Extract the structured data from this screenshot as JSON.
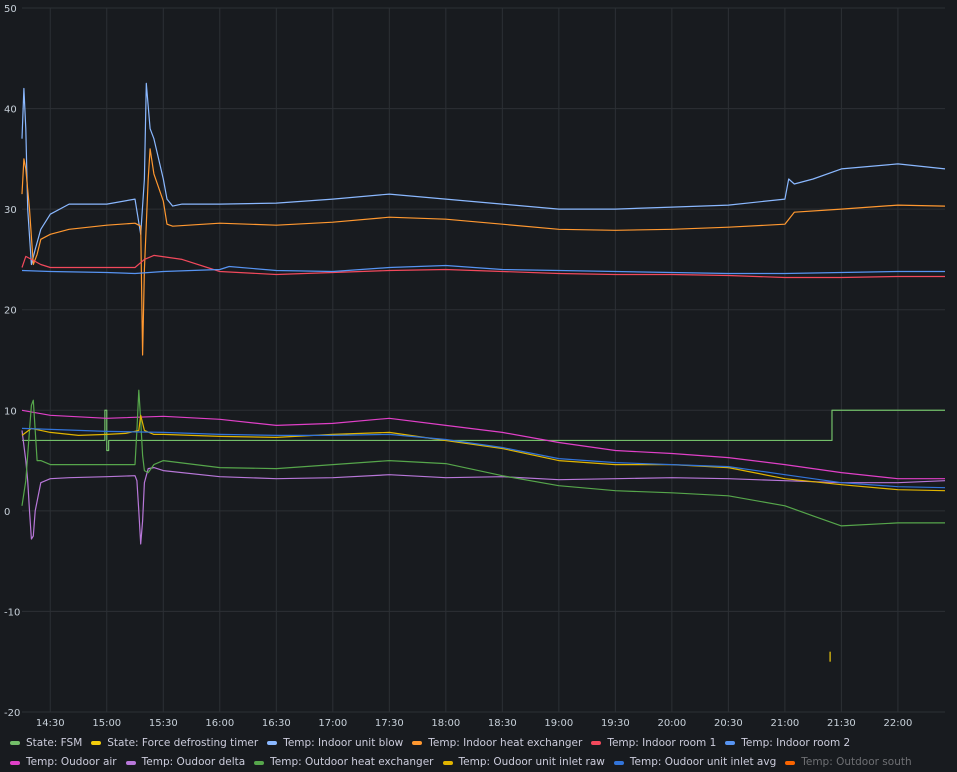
{
  "chart_data": {
    "type": "line",
    "title": "",
    "xlabel": "",
    "ylabel": "",
    "ylim": [
      -20,
      50
    ],
    "y_ticks": [
      -20,
      -10,
      0,
      10,
      20,
      30,
      40,
      50
    ],
    "x_range": [
      "14:15",
      "22:25"
    ],
    "x_ticks": [
      "14:30",
      "15:00",
      "15:30",
      "16:00",
      "16:30",
      "17:00",
      "17:30",
      "18:00",
      "18:30",
      "19:00",
      "19:30",
      "20:00",
      "20:30",
      "21:00",
      "21:30",
      "22:00"
    ],
    "grid": true,
    "legend_position": "bottom",
    "series": [
      {
        "name": "State: FSM",
        "color": "#73bf69",
        "style": "step",
        "x": [
          "14:15",
          "14:58",
          "14:59",
          "15:00",
          "15:01",
          "21:24",
          "21:25",
          "22:25"
        ],
        "y": [
          7,
          7,
          10,
          6,
          7,
          7,
          10,
          10
        ]
      },
      {
        "name": "State: Force defrosting timer",
        "color": "#f2cc0c",
        "x": [
          "21:24"
        ],
        "y": [
          -14.5
        ]
      },
      {
        "name": "Temp: Indoor unit blow",
        "color": "#8ab8ff",
        "x": [
          "14:15",
          "14:16",
          "14:17",
          "14:18",
          "14:20",
          "14:22",
          "14:25",
          "14:30",
          "14:40",
          "15:00",
          "15:15",
          "15:18",
          "15:20",
          "15:21",
          "15:23",
          "15:25",
          "15:30",
          "15:32",
          "15:35",
          "15:40",
          "16:00",
          "16:30",
          "17:00",
          "17:30",
          "18:00",
          "18:30",
          "19:00",
          "19:30",
          "20:00",
          "20:30",
          "21:00",
          "21:02",
          "21:05",
          "21:15",
          "21:30",
          "22:00",
          "22:25"
        ],
        "y": [
          37,
          42,
          38,
          30,
          24.5,
          26,
          28,
          29.5,
          30.5,
          30.5,
          31,
          27.5,
          33,
          42.5,
          38,
          37,
          33,
          31,
          30.3,
          30.5,
          30.5,
          30.6,
          31,
          31.5,
          31,
          30.5,
          30,
          30,
          30.2,
          30.4,
          31,
          33,
          32.5,
          33,
          34,
          34.5,
          34
        ]
      },
      {
        "name": "Temp: Indoor heat exchanger",
        "color": "#ff9830",
        "x": [
          "14:15",
          "14:16",
          "14:17",
          "14:19",
          "14:21",
          "14:23",
          "14:25",
          "14:30",
          "14:40",
          "15:00",
          "15:15",
          "15:18",
          "15:19",
          "15:20",
          "15:22",
          "15:23",
          "15:25",
          "15:30",
          "15:32",
          "15:35",
          "16:00",
          "16:30",
          "17:00",
          "17:30",
          "18:00",
          "18:30",
          "19:00",
          "19:30",
          "20:00",
          "20:30",
          "21:00",
          "21:05",
          "21:30",
          "22:00",
          "22:25"
        ],
        "y": [
          31.5,
          35,
          34,
          30,
          24.5,
          25.5,
          27,
          27.5,
          28,
          28.4,
          28.6,
          28.3,
          15.5,
          24,
          33,
          36,
          33.5,
          30.8,
          28.5,
          28.3,
          28.6,
          28.4,
          28.7,
          29.2,
          29,
          28.5,
          28,
          27.9,
          28,
          28.2,
          28.5,
          29.7,
          30,
          30.4,
          30.3
        ]
      },
      {
        "name": "Temp: Indoor room 1",
        "color": "#f2495c",
        "x": [
          "14:15",
          "14:17",
          "14:20",
          "14:25",
          "14:30",
          "15:00",
          "15:15",
          "15:20",
          "15:25",
          "15:40",
          "16:00",
          "16:30",
          "17:00",
          "17:30",
          "18:00",
          "18:30",
          "19:00",
          "19:30",
          "20:00",
          "20:30",
          "21:00",
          "21:30",
          "22:00",
          "22:25"
        ],
        "y": [
          24.2,
          25.3,
          25,
          24.5,
          24.2,
          24.2,
          24.2,
          25,
          25.4,
          25,
          23.8,
          23.5,
          23.7,
          23.9,
          24,
          23.8,
          23.6,
          23.5,
          23.5,
          23.4,
          23.2,
          23.2,
          23.3,
          23.3
        ]
      },
      {
        "name": "Temp: Indoor room 2",
        "color": "#5794f2",
        "x": [
          "14:15",
          "14:30",
          "15:00",
          "15:15",
          "15:30",
          "16:00",
          "16:05",
          "16:30",
          "17:00",
          "17:30",
          "18:00",
          "18:30",
          "19:00",
          "19:30",
          "20:00",
          "20:30",
          "21:00",
          "21:30",
          "22:00",
          "22:25"
        ],
        "y": [
          23.9,
          23.8,
          23.7,
          23.6,
          23.8,
          24,
          24.3,
          23.9,
          23.8,
          24.2,
          24.4,
          24,
          23.9,
          23.8,
          23.7,
          23.6,
          23.6,
          23.7,
          23.8,
          23.8
        ]
      },
      {
        "name": "Temp: Oudoor air",
        "color": "#e040c8",
        "x": [
          "14:15",
          "14:30",
          "15:00",
          "15:30",
          "16:00",
          "16:30",
          "17:00",
          "17:30",
          "18:00",
          "18:30",
          "19:00",
          "19:30",
          "20:00",
          "20:30",
          "21:00",
          "21:30",
          "22:00",
          "22:25"
        ],
        "y": [
          10,
          9.5,
          9.2,
          9.4,
          9.1,
          8.5,
          8.7,
          9.2,
          8.5,
          7.8,
          6.8,
          6,
          5.7,
          5.3,
          4.6,
          3.8,
          3.2,
          3.2
        ]
      },
      {
        "name": "Temp: Oudoor delta",
        "color": "#b877d9",
        "x": [
          "14:15",
          "14:17",
          "14:18",
          "14:19",
          "14:20",
          "14:21",
          "14:22",
          "14:25",
          "14:30",
          "14:40",
          "15:00",
          "15:15",
          "15:16",
          "15:17",
          "15:18",
          "15:19",
          "15:20",
          "15:22",
          "15:25",
          "15:30",
          "16:00",
          "16:30",
          "17:00",
          "17:30",
          "18:00",
          "18:30",
          "19:00",
          "19:30",
          "20:00",
          "20:30",
          "21:00",
          "21:30",
          "22:00",
          "22:25"
        ],
        "y": [
          8,
          5,
          3,
          0,
          -2.8,
          -2.5,
          0,
          2.8,
          3.2,
          3.3,
          3.4,
          3.5,
          3,
          0,
          -3.3,
          -1,
          2.8,
          4.2,
          4.3,
          4,
          3.4,
          3.2,
          3.3,
          3.6,
          3.3,
          3.4,
          3.1,
          3.2,
          3.3,
          3.2,
          3,
          2.8,
          2.8,
          3
        ]
      },
      {
        "name": "Temp: Outdoor heat exchanger",
        "color": "#56a64b",
        "x": [
          "14:15",
          "14:17",
          "14:19",
          "14:20",
          "14:21",
          "14:22",
          "14:23",
          "14:25",
          "14:30",
          "14:40",
          "15:00",
          "15:15",
          "15:16",
          "15:17",
          "15:18",
          "15:19",
          "15:20",
          "15:22",
          "15:25",
          "15:30",
          "16:00",
          "16:30",
          "17:00",
          "17:30",
          "18:00",
          "18:30",
          "19:00",
          "19:30",
          "20:00",
          "20:30",
          "21:00",
          "21:15",
          "21:30",
          "22:00",
          "22:25"
        ],
        "y": [
          0.5,
          3,
          8,
          10.5,
          11,
          8,
          5,
          5,
          4.6,
          4.6,
          4.6,
          4.6,
          8,
          12,
          9,
          5.5,
          4,
          3.8,
          4.6,
          5,
          4.3,
          4.2,
          4.6,
          5,
          4.7,
          3.5,
          2.5,
          2,
          1.8,
          1.5,
          0.5,
          -0.5,
          -1.5,
          -1.2,
          -1.2
        ]
      },
      {
        "name": "Temp: Oudoor unit inlet raw",
        "color": "#e0b400",
        "x": [
          "14:15",
          "14:20",
          "14:30",
          "14:45",
          "15:00",
          "15:10",
          "15:17",
          "15:18",
          "15:20",
          "15:25",
          "15:30",
          "16:00",
          "16:30",
          "17:00",
          "17:30",
          "18:00",
          "18:30",
          "19:00",
          "19:30",
          "20:00",
          "20:30",
          "21:00",
          "21:30",
          "22:00",
          "22:25"
        ],
        "y": [
          7.5,
          8.2,
          7.8,
          7.5,
          7.6,
          7.7,
          8,
          9.5,
          8,
          7.6,
          7.6,
          7.4,
          7.3,
          7.6,
          7.8,
          7,
          6.2,
          5,
          4.6,
          4.6,
          4.3,
          3.2,
          2.6,
          2.1,
          2
        ]
      },
      {
        "name": "Temp: Oudoor unit inlet avg",
        "color": "#3274d9",
        "x": [
          "14:15",
          "14:30",
          "15:00",
          "15:30",
          "16:00",
          "16:30",
          "17:00",
          "17:30",
          "18:00",
          "18:30",
          "19:00",
          "19:30",
          "20:00",
          "20:30",
          "21:00",
          "21:30",
          "22:00",
          "22:25"
        ],
        "y": [
          8.2,
          8.1,
          7.9,
          7.8,
          7.6,
          7.5,
          7.5,
          7.6,
          7.1,
          6.3,
          5.2,
          4.8,
          4.6,
          4.4,
          3.6,
          2.8,
          2.4,
          2.3
        ]
      },
      {
        "name": "Temp: Outdoor south",
        "color": "#fa6400",
        "hidden": true,
        "x": [],
        "y": []
      }
    ]
  }
}
